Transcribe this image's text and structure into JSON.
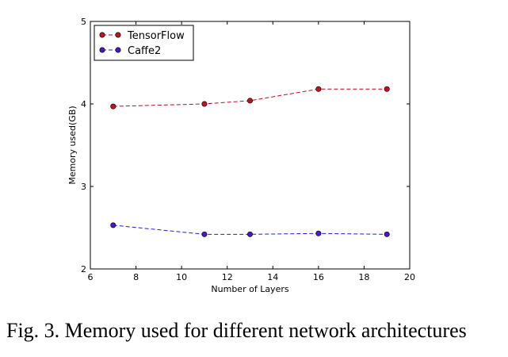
{
  "caption": "Fig. 3.  Memory used for different network architectures",
  "chart_data": {
    "type": "line",
    "title": "",
    "xlabel": "Number of Layers",
    "ylabel": "Memory used(GB)",
    "xlim": [
      6,
      20
    ],
    "ylim": [
      2,
      5
    ],
    "xticks": [
      "6",
      "8",
      "10",
      "12",
      "14",
      "16",
      "18",
      "20"
    ],
    "yticks": [
      "2",
      "3",
      "4",
      "5"
    ],
    "grid": false,
    "legend_position": "top-left",
    "series": [
      {
        "name": "TensorFlow",
        "color": "#d4001a",
        "marker_color": "#c1121f",
        "line_style": "dashed",
        "x": [
          7,
          11,
          13,
          16,
          19
        ],
        "y": [
          3.97,
          4.0,
          4.04,
          4.18,
          4.18
        ]
      },
      {
        "name": "Caffe2",
        "color": "#1a1aff",
        "marker_color": "#4b16c9",
        "line_style": "dashed",
        "x": [
          7,
          11,
          13,
          16,
          19
        ],
        "y": [
          2.53,
          2.42,
          2.42,
          2.43,
          2.42
        ]
      }
    ]
  }
}
